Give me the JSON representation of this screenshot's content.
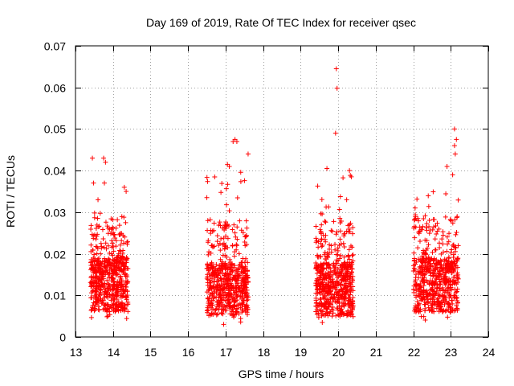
{
  "chart_data": {
    "type": "scatter",
    "title": "Day 169 of 2019, Rate Of TEC Index for receiver qsec",
    "xlabel": "GPS time / hours",
    "ylabel": "ROTI / TECUs",
    "xlim": [
      13,
      24
    ],
    "ylim": [
      0,
      0.07
    ],
    "xticks": [
      13,
      14,
      15,
      16,
      17,
      18,
      19,
      20,
      21,
      22,
      23,
      24
    ],
    "yticks": [
      0,
      0.01,
      0.02,
      0.03,
      0.04,
      0.05,
      0.06,
      0.07
    ],
    "ytick_labels": [
      "0",
      "0.01",
      "0.02",
      "0.03",
      "0.04",
      "0.05",
      "0.06",
      "0.07"
    ],
    "grid": true,
    "marker": "+",
    "marker_color": "#ff0000",
    "series": [
      {
        "name": "ROTI",
        "clusters": [
          {
            "x_range": [
              13.4,
              14.4
            ],
            "y_typical": [
              0.004,
              0.03
            ]
          },
          {
            "x_range": [
              16.5,
              17.6
            ],
            "y_typical": [
              0.003,
              0.04
            ]
          },
          {
            "x_range": [
              19.4,
              20.4
            ],
            "y_typical": [
              0.003,
              0.04
            ]
          },
          {
            "x_range": [
              22.0,
              23.2
            ],
            "y_typical": [
              0.004,
              0.035
            ]
          }
        ],
        "x": [
          13.45,
          13.48,
          13.75,
          13.8,
          13.6,
          13.77,
          14.3,
          14.35,
          17.2,
          17.25,
          17.3,
          17.1,
          17.6,
          16.5,
          17.05,
          19.95,
          19.97,
          19.93,
          19.7,
          20.3,
          20.35,
          22.05,
          22.9,
          23.1,
          23.15,
          23.1,
          23.12,
          23.05
        ],
        "y": [
          0.043,
          0.037,
          0.043,
          0.042,
          0.033,
          0.037,
          0.036,
          0.035,
          0.047,
          0.0475,
          0.047,
          0.041,
          0.044,
          0.0335,
          0.0415,
          0.0645,
          0.0598,
          0.049,
          0.0405,
          0.04,
          0.0385,
          0.031,
          0.041,
          0.05,
          0.0475,
          0.046,
          0.044,
          0.039
        ]
      }
    ]
  }
}
